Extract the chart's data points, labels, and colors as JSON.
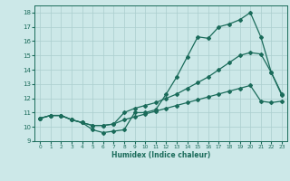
{
  "xlabel": "Humidex (Indice chaleur)",
  "xlim": [
    -0.5,
    23.5
  ],
  "ylim": [
    9,
    18.5
  ],
  "xticks": [
    0,
    1,
    2,
    3,
    4,
    5,
    6,
    7,
    8,
    9,
    10,
    11,
    12,
    13,
    14,
    15,
    16,
    17,
    18,
    19,
    20,
    21,
    22,
    23
  ],
  "yticks": [
    9,
    10,
    11,
    12,
    13,
    14,
    15,
    16,
    17,
    18
  ],
  "bg_color": "#cce8e8",
  "grid_color": "#aacece",
  "line_color": "#1a6b5a",
  "line1_x": [
    0,
    1,
    2,
    3,
    4,
    5,
    6,
    7,
    8,
    9,
    10,
    11,
    12,
    13,
    14,
    15,
    16,
    17,
    18,
    19,
    20,
    21,
    22,
    23
  ],
  "line1_y": [
    10.6,
    10.8,
    10.8,
    10.5,
    10.3,
    9.8,
    9.6,
    9.7,
    9.8,
    11.0,
    11.0,
    11.2,
    12.3,
    13.5,
    14.9,
    16.3,
    16.2,
    17.0,
    17.2,
    17.5,
    18.0,
    16.3,
    13.8,
    12.3
  ],
  "line2_x": [
    0,
    1,
    2,
    3,
    4,
    5,
    6,
    7,
    8,
    9,
    10,
    11,
    12,
    13,
    14,
    15,
    16,
    17,
    18,
    19,
    20,
    21,
    22,
    23
  ],
  "line2_y": [
    10.6,
    10.8,
    10.8,
    10.5,
    10.3,
    10.1,
    10.1,
    10.2,
    11.0,
    11.3,
    11.5,
    11.7,
    12.0,
    12.3,
    12.7,
    13.1,
    13.5,
    14.0,
    14.5,
    15.0,
    15.2,
    15.1,
    13.8,
    12.2
  ],
  "line3_x": [
    0,
    1,
    2,
    3,
    4,
    5,
    6,
    7,
    8,
    9,
    10,
    11,
    12,
    13,
    14,
    15,
    16,
    17,
    18,
    19,
    20,
    21,
    22,
    23
  ],
  "line3_y": [
    10.6,
    10.8,
    10.8,
    10.5,
    10.3,
    10.1,
    10.1,
    10.2,
    10.5,
    10.7,
    10.9,
    11.1,
    11.3,
    11.5,
    11.7,
    11.9,
    12.1,
    12.3,
    12.5,
    12.7,
    12.9,
    11.8,
    11.7,
    11.8
  ]
}
